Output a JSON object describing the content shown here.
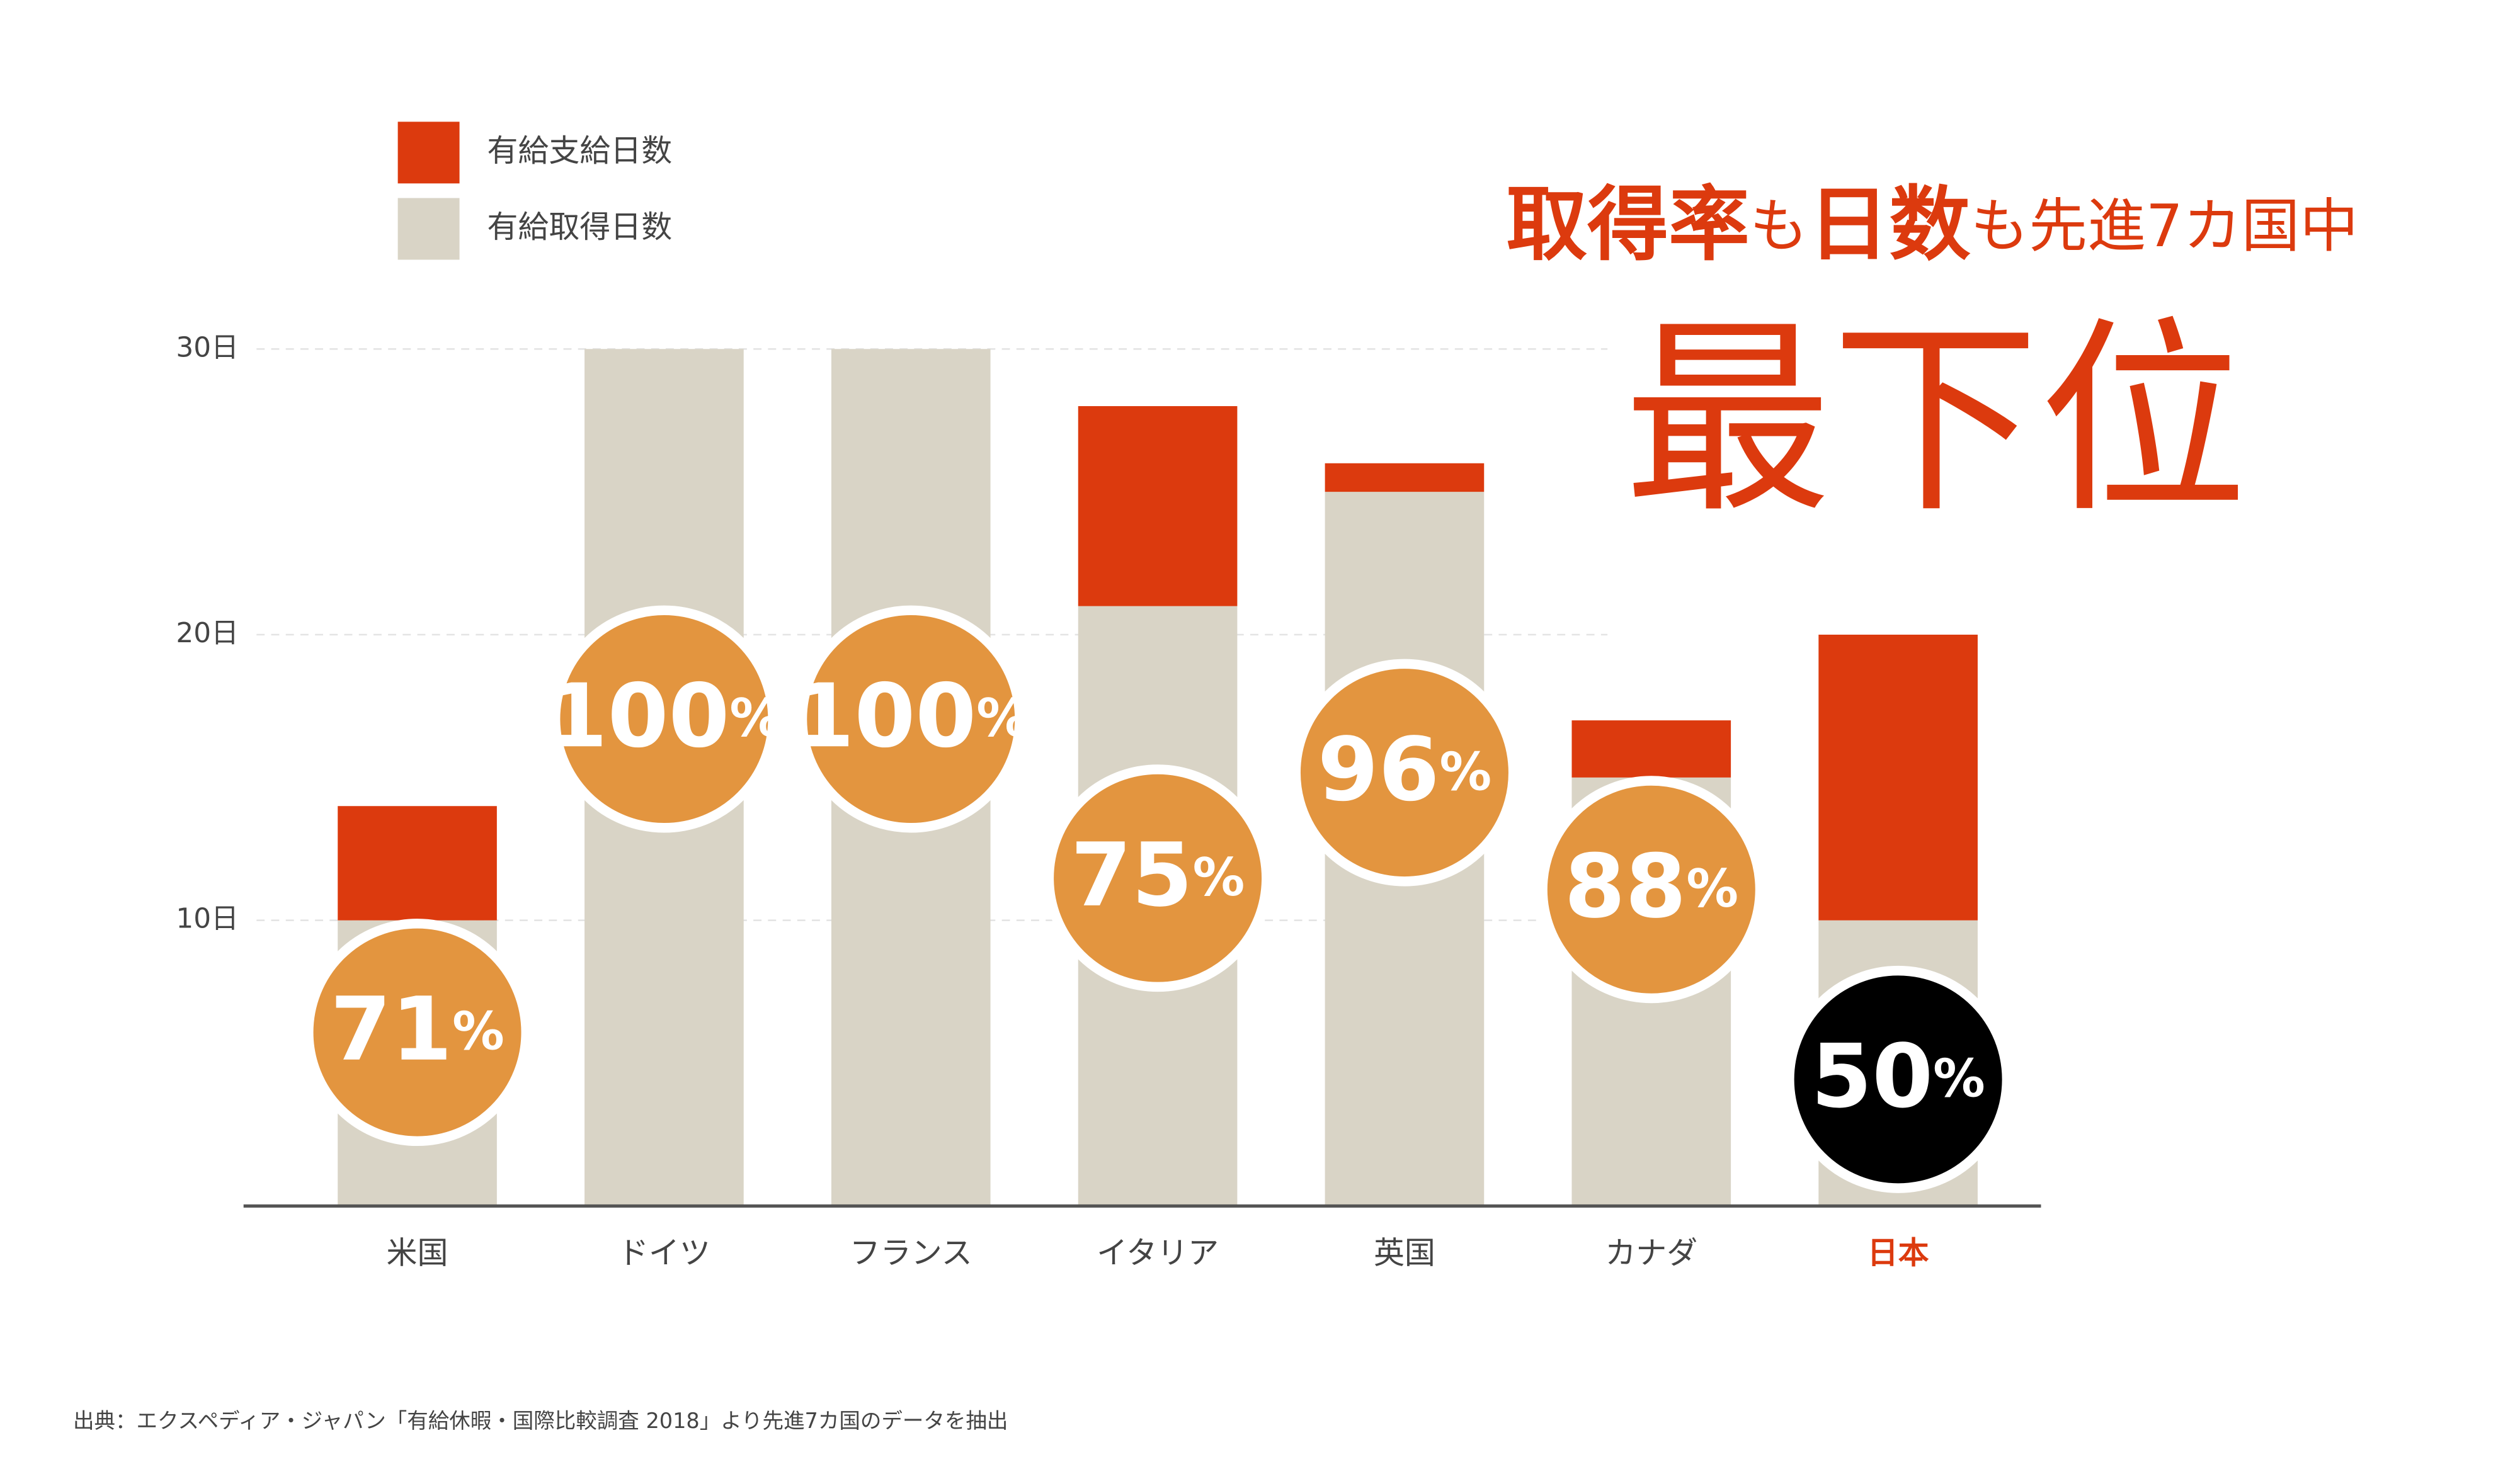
{
  "chart_data": {
    "type": "stacked-bar",
    "headline": [
      "取得率",
      "も",
      "日数",
      "も先進7カ国中"
    ],
    "headline2": "最下位",
    "categories": [
      "米国",
      "ドイツ",
      "フランス",
      "イタリア",
      "英国",
      "カナダ",
      "日本"
    ],
    "series": [
      {
        "name": "有給取得日数",
        "color": "#d9d4c6",
        "values": [
          10,
          30,
          30,
          21,
          25,
          15,
          10
        ]
      },
      {
        "name": "有給支給日数",
        "color": "#dc3a0e",
        "values": [
          4,
          0,
          0,
          7,
          1,
          2,
          10
        ]
      }
    ],
    "rates": {
      "values": [
        71,
        100,
        100,
        75,
        96,
        88,
        50
      ],
      "unit": "%",
      "color": "#e3953f",
      "highlight_color": "#000000"
    },
    "highlight": 6,
    "highlight_label_color": "#dc3a0e",
    "ylim": [
      0,
      30
    ],
    "yticks": [
      {
        "value": 10,
        "label": "10日"
      },
      {
        "value": 20,
        "label": "20日"
      },
      {
        "value": 30,
        "label": "30日"
      }
    ],
    "grid": true,
    "source": "出典：エクスペディア・ジャパン「有給休暇・国際比較調査 2018」より先進7カ国のデータを抽出"
  }
}
